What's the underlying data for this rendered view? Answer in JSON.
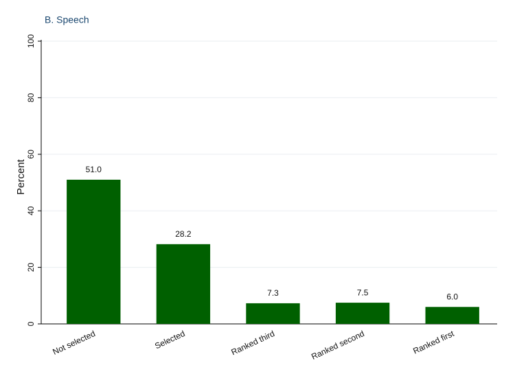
{
  "chart_data": {
    "type": "bar",
    "title": "B. Speech",
    "y_label": "Percent",
    "categories": [
      "Not selected",
      "Selected",
      "Ranked third",
      "Ranked second",
      "Ranked first"
    ],
    "values": [
      51.0,
      28.2,
      7.3,
      7.5,
      6.0
    ],
    "value_labels": [
      "51.0",
      "28.2",
      "7.3",
      "7.5",
      "6.0"
    ],
    "color": "#006000",
    "ylim": [
      0,
      100
    ],
    "yticks": [
      0,
      20,
      40,
      60,
      80,
      100
    ],
    "grid": true
  }
}
